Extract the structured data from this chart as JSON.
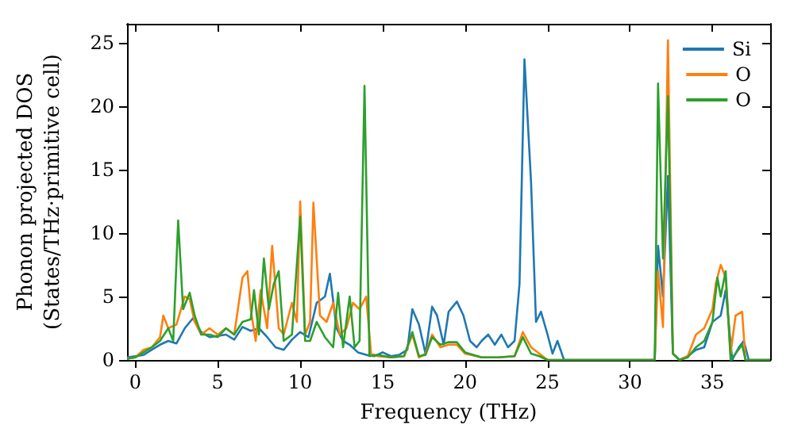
{
  "chart_data": {
    "type": "line",
    "xlabel": "Frequency (THz)",
    "ylabel": "Phonon projected DOS\n(States/THz·primitive cell)",
    "xlim": [
      -0.5,
      38.5
    ],
    "ylim": [
      0,
      26.5
    ],
    "xticks": [
      0,
      5,
      10,
      15,
      20,
      25,
      30,
      35
    ],
    "yticks": [
      0,
      5,
      10,
      15,
      20,
      25
    ],
    "grid": false,
    "legend": "top right",
    "marker": "none",
    "line_style": "solid",
    "series": [
      {
        "name": "Si",
        "color": "#1f77b4",
        "x": [
          -0.5,
          0,
          0.5,
          1,
          1.5,
          2,
          2.5,
          3,
          3.5,
          4,
          4.5,
          5,
          5.5,
          6,
          6.5,
          7,
          7.5,
          8,
          8.5,
          9,
          9.5,
          10,
          10.5,
          11,
          11.5,
          11.8,
          12.2,
          12.6,
          13,
          13.5,
          14,
          14.5,
          15,
          15.5,
          16,
          16.5,
          16.8,
          17.2,
          17.6,
          18,
          18.3,
          18.7,
          19,
          19.5,
          19.9,
          20.3,
          20.7,
          21,
          21.4,
          21.8,
          22.2,
          22.6,
          23,
          23.3,
          23.6,
          24,
          24.3,
          24.6,
          25,
          25.3,
          25.6,
          26,
          28,
          31,
          31.5,
          31.7,
          32,
          32.3,
          32.6,
          33,
          33.5,
          34,
          34.5,
          35,
          35.5,
          35.8,
          36.2,
          36.6,
          36.9,
          37.2,
          38.5
        ],
        "values": [
          0.2,
          0.3,
          0.4,
          0.8,
          1.2,
          1.5,
          1.3,
          2.5,
          3.3,
          2.2,
          1.8,
          1.9,
          2.0,
          1.6,
          2.6,
          2.3,
          2.5,
          1.8,
          1.0,
          0.8,
          1.6,
          2.2,
          1.8,
          4.5,
          5.0,
          6.8,
          2.5,
          1.5,
          1.2,
          0.6,
          0.4,
          0.3,
          0.6,
          0.3,
          0.4,
          0.8,
          4.0,
          2.8,
          0.5,
          4.2,
          3.5,
          1.2,
          3.8,
          4.6,
          3.5,
          1.5,
          1.0,
          1.5,
          2.0,
          1.2,
          2.0,
          1.0,
          1.5,
          6.0,
          23.7,
          14.0,
          3.0,
          3.8,
          2.0,
          0.5,
          1.5,
          0,
          0,
          0,
          0,
          9.0,
          5.0,
          14.5,
          0.5,
          0,
          0.3,
          0.8,
          1.0,
          3.0,
          3.5,
          5.5,
          0,
          1.0,
          1.5,
          0,
          0
        ]
      },
      {
        "name": "O",
        "color": "#ff7f0e",
        "x": [
          -0.5,
          0,
          0.5,
          1,
          1.5,
          1.7,
          2,
          2.5,
          3,
          3.3,
          3.6,
          4,
          4.5,
          5,
          5.5,
          6,
          6.5,
          6.8,
          7,
          7.3,
          7.6,
          8,
          8.3,
          8.7,
          9,
          9.5,
          9.8,
          10,
          10.3,
          10.6,
          10.8,
          11.2,
          11.6,
          12,
          12.4,
          12.8,
          13.2,
          13.6,
          14,
          14.3,
          14.7,
          15.5,
          16.3,
          16.8,
          17.2,
          17.6,
          18,
          18.5,
          19,
          19.5,
          20,
          21,
          22,
          23,
          23.5,
          24,
          24.5,
          25,
          26,
          31,
          31.5,
          31.7,
          32,
          32.3,
          32.6,
          33,
          33.5,
          34,
          34.5,
          35,
          35.2,
          35.5,
          35.8,
          36.1,
          36.4,
          36.8,
          37,
          38.5
        ],
        "values": [
          0.1,
          0.2,
          0.8,
          1.0,
          1.8,
          3.5,
          2.5,
          2.8,
          5.0,
          4.8,
          3.0,
          2.0,
          2.5,
          2.0,
          2.5,
          2.0,
          6.5,
          7.0,
          4.0,
          1.5,
          5.5,
          2.5,
          9.0,
          2.5,
          2.0,
          4.5,
          3.0,
          12.5,
          2.0,
          3.0,
          12.4,
          3.5,
          3.0,
          4.5,
          2.0,
          2.5,
          4.5,
          4.0,
          5.0,
          0.5,
          0.3,
          0.2,
          0.3,
          2.0,
          0.2,
          0.5,
          2.0,
          1.0,
          1.2,
          1.2,
          0.5,
          0.2,
          0.2,
          0.3,
          2.2,
          1.0,
          0.5,
          0,
          0,
          0,
          0,
          7.0,
          2.6,
          25.2,
          0.5,
          0,
          0.3,
          2.0,
          2.5,
          4.0,
          6.0,
          7.5,
          6.5,
          0.5,
          3.5,
          3.8,
          0,
          0
        ]
      },
      {
        "name": "O",
        "color": "#2ca02c",
        "x": [
          -0.5,
          0,
          0.5,
          1,
          1.5,
          2,
          2.3,
          2.6,
          2.9,
          3.3,
          3.6,
          4,
          4.5,
          5,
          5.5,
          6,
          6.5,
          7,
          7.2,
          7.5,
          7.8,
          8.1,
          8.4,
          8.7,
          9,
          9.5,
          10,
          10.3,
          10.6,
          11,
          11.5,
          12,
          12.3,
          12.6,
          13,
          13.3,
          13.6,
          13.9,
          14.2,
          14.7,
          15.5,
          16.3,
          16.8,
          17.2,
          17.6,
          18,
          18.5,
          19,
          19.5,
          20,
          21,
          22,
          23,
          23.5,
          24,
          24.5,
          25,
          26,
          31,
          31.5,
          31.7,
          32,
          32.3,
          32.6,
          33,
          33.5,
          34,
          34.5,
          35,
          35.3,
          35.5,
          35.8,
          36.1,
          36.4,
          36.8,
          37,
          38.5
        ],
        "values": [
          0.1,
          0.2,
          0.6,
          1.0,
          1.5,
          2.5,
          1.5,
          11.0,
          4.0,
          5.3,
          3.5,
          2.0,
          2.0,
          1.8,
          2.5,
          2.0,
          3.0,
          3.2,
          5.5,
          2.0,
          8.0,
          4.0,
          6.0,
          7.0,
          1.5,
          2.0,
          11.3,
          1.5,
          1.5,
          3.0,
          1.8,
          1.0,
          5.3,
          1.0,
          5.0,
          1.0,
          1.5,
          21.6,
          0.3,
          0.4,
          0.2,
          0.3,
          2.2,
          0.3,
          0.4,
          1.8,
          1.2,
          1.4,
          1.4,
          0.6,
          0.2,
          0.2,
          0.3,
          1.8,
          0.5,
          0.3,
          0,
          0,
          0,
          0,
          21.8,
          8.0,
          20.8,
          0.5,
          0,
          0.2,
          1.0,
          1.5,
          3.0,
          6.5,
          5.0,
          7.0,
          0,
          0.5,
          1.2,
          0,
          0
        ]
      }
    ]
  }
}
